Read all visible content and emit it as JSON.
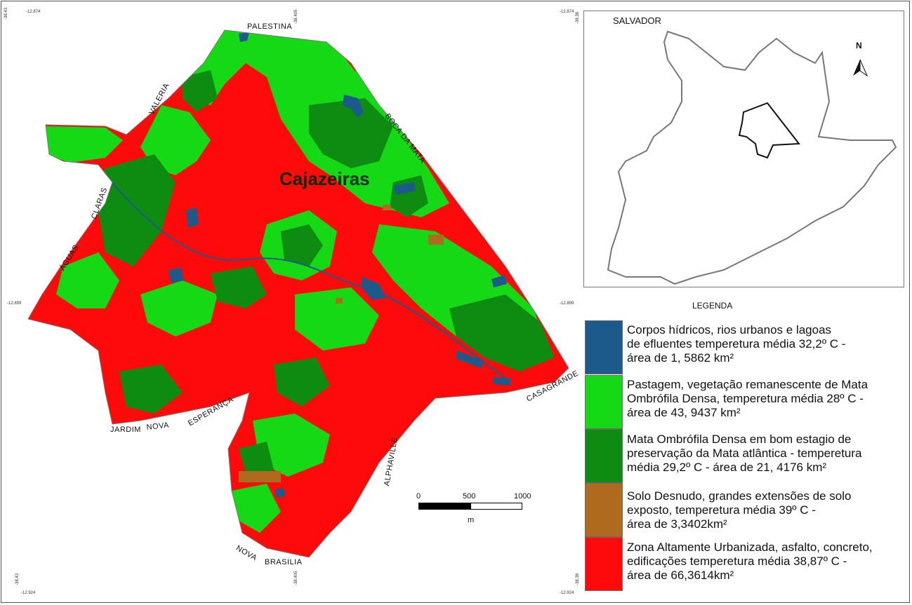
{
  "map": {
    "title": "Cajazeiras",
    "coords": {
      "top_left_lat": "-12.874",
      "top_right_lat": "-12.874",
      "mid_left_lat": "-12.899",
      "mid_right_lat": "-12.899",
      "bottom_left_lat": "-12.924",
      "bottom_right_lat": "-12.924",
      "left_lon": "-38.43",
      "center_lon": "-38.405",
      "right_lon": "-38.38"
    },
    "neighborhoods": {
      "palestina": "PALESTINA",
      "valeria": "VALERIA",
      "boca_da_mata": "BOCA DA MATA",
      "claras": "CLARAS",
      "aguas": "ÁGUAS",
      "casagrande": "CASAGRANDE",
      "alphaville": "ALPHAVILLE",
      "jardim": "JARDIM",
      "nova": "NOVA",
      "esperanca": "ESPERANÇA",
      "nova_brasilia_1": "NOVA",
      "nova_brasilia_2": "BRASILIA"
    },
    "scale": {
      "ticks": [
        "0",
        "500",
        "1000"
      ],
      "unit": "m"
    }
  },
  "inset": {
    "title": "SALVADOR",
    "north": "N"
  },
  "legend": {
    "title": "LEGENDA",
    "items": [
      {
        "color": "#1c5a8c",
        "text": "Corpos hídricos, rios urbanos e lagoas\nde efluentes tempe­retura média 32,2º C -\nárea  de 1, 5862 km²"
      },
      {
        "color": "#16d916",
        "text": "Pastagem, vegetação remanescente de Mata\nOmbrófila Densa, temperetura média 28º C -\nárea de  43, 9437 km²"
      },
      {
        "color": "#0e8c12",
        "text": "Mata Ombrófila Densa em bom estagio  de\npreservação da Mata atlântica - temperetura\nmédia 29,2º C - área de 21, 4176 km²"
      },
      {
        "color": "#b06a1e",
        "text": "Solo Desnudo, grandes extensões de solo\nexposto, temperetura média 39º C -\nárea de  3,3402km²"
      },
      {
        "color": "#ff0a0a",
        "text": "Zona Altamente Urbanizada, asfalto, concreto,\nedificações temperetura média 38,87º C -\nárea de 66,3614km²"
      }
    ]
  },
  "colors": {
    "water": "#1c5a8c",
    "pasture": "#16d916",
    "forest": "#0e8c12",
    "bare_soil": "#b06a1e",
    "urban": "#ff0a0a"
  }
}
